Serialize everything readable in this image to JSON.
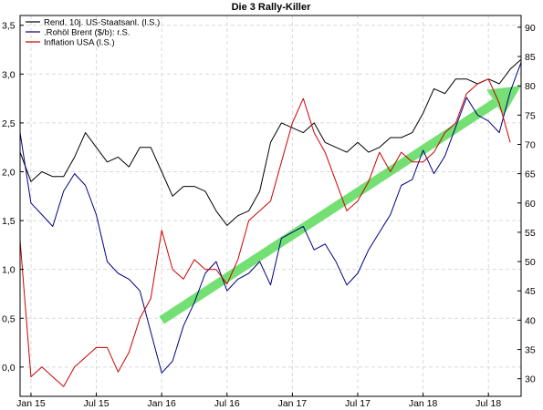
{
  "chart_data": {
    "type": "line",
    "title": "Die 3 Rally-Killer",
    "xlabel": "",
    "ylabel_left": "",
    "ylabel_right": "",
    "x_ticks": [
      "Jan 15",
      "Jul 15",
      "Jan 16",
      "Jul 16",
      "Jan 17",
      "Jul 17",
      "Jan 18",
      "Jul 18"
    ],
    "x_range": [
      "2014-12",
      "2018-10"
    ],
    "y_left_ticks": [
      "3,5",
      "3,0",
      "2,5",
      "2,0",
      "1,5",
      "1,0",
      "0,5",
      "0,0"
    ],
    "y_left_range": [
      -0.3,
      3.6
    ],
    "y_right_ticks": [
      "90",
      "85",
      "80",
      "75",
      "70",
      "65",
      "60",
      "55",
      "50",
      "45",
      "40",
      "35",
      "30"
    ],
    "y_right_range": [
      27,
      92
    ],
    "grid": true,
    "legend_position": "top-left",
    "series": [
      {
        "name": "Rend. 10j. US-Staatsanl. (l.S.)",
        "axis": "left",
        "color": "#000000",
        "points": [
          [
            "2014-12",
            2.2
          ],
          [
            "2015-01",
            1.9
          ],
          [
            "2015-02",
            2.0
          ],
          [
            "2015-03",
            1.95
          ],
          [
            "2015-04",
            1.95
          ],
          [
            "2015-05",
            2.15
          ],
          [
            "2015-06",
            2.4
          ],
          [
            "2015-07",
            2.25
          ],
          [
            "2015-08",
            2.1
          ],
          [
            "2015-09",
            2.15
          ],
          [
            "2015-10",
            2.05
          ],
          [
            "2015-11",
            2.25
          ],
          [
            "2015-12",
            2.25
          ],
          [
            "2016-01",
            2.0
          ],
          [
            "2016-02",
            1.75
          ],
          [
            "2016-03",
            1.85
          ],
          [
            "2016-04",
            1.85
          ],
          [
            "2016-05",
            1.8
          ],
          [
            "2016-06",
            1.6
          ],
          [
            "2016-07",
            1.45
          ],
          [
            "2016-08",
            1.55
          ],
          [
            "2016-09",
            1.6
          ],
          [
            "2016-10",
            1.8
          ],
          [
            "2016-11",
            2.3
          ],
          [
            "2016-12",
            2.5
          ],
          [
            "2017-01",
            2.45
          ],
          [
            "2017-02",
            2.4
          ],
          [
            "2017-03",
            2.5
          ],
          [
            "2017-04",
            2.3
          ],
          [
            "2017-05",
            2.25
          ],
          [
            "2017-06",
            2.2
          ],
          [
            "2017-07",
            2.3
          ],
          [
            "2017-08",
            2.2
          ],
          [
            "2017-09",
            2.25
          ],
          [
            "2017-10",
            2.35
          ],
          [
            "2017-11",
            2.35
          ],
          [
            "2017-12",
            2.4
          ],
          [
            "2018-01",
            2.6
          ],
          [
            "2018-02",
            2.85
          ],
          [
            "2018-03",
            2.8
          ],
          [
            "2018-04",
            2.95
          ],
          [
            "2018-05",
            2.95
          ],
          [
            "2018-06",
            2.9
          ],
          [
            "2018-07",
            2.95
          ],
          [
            "2018-08",
            2.9
          ],
          [
            "2018-09",
            3.05
          ],
          [
            "2018-10",
            3.15
          ]
        ]
      },
      {
        "name": ".Rohöl Brent ($/b): r.S.",
        "axis": "right",
        "color": "#00007f",
        "points": [
          [
            "2014-12",
            72
          ],
          [
            "2015-01",
            60
          ],
          [
            "2015-02",
            58
          ],
          [
            "2015-03",
            56
          ],
          [
            "2015-04",
            62
          ],
          [
            "2015-05",
            65
          ],
          [
            "2015-06",
            63
          ],
          [
            "2015-07",
            58
          ],
          [
            "2015-08",
            50
          ],
          [
            "2015-09",
            48
          ],
          [
            "2015-10",
            47
          ],
          [
            "2015-11",
            45
          ],
          [
            "2015-12",
            38
          ],
          [
            "2016-01",
            31
          ],
          [
            "2016-02",
            33
          ],
          [
            "2016-03",
            39
          ],
          [
            "2016-04",
            43
          ],
          [
            "2016-05",
            48
          ],
          [
            "2016-06",
            50
          ],
          [
            "2016-07",
            45
          ],
          [
            "2016-08",
            47
          ],
          [
            "2016-09",
            48
          ],
          [
            "2016-10",
            50
          ],
          [
            "2016-11",
            46
          ],
          [
            "2016-12",
            54
          ],
          [
            "2017-01",
            55
          ],
          [
            "2017-02",
            56
          ],
          [
            "2017-03",
            52
          ],
          [
            "2017-04",
            53
          ],
          [
            "2017-05",
            50
          ],
          [
            "2017-06",
            46
          ],
          [
            "2017-07",
            48
          ],
          [
            "2017-08",
            52
          ],
          [
            "2017-09",
            55
          ],
          [
            "2017-10",
            58
          ],
          [
            "2017-11",
            63
          ],
          [
            "2017-12",
            64
          ],
          [
            "2018-01",
            69
          ],
          [
            "2018-02",
            65
          ],
          [
            "2018-03",
            68
          ],
          [
            "2018-04",
            73
          ],
          [
            "2018-05",
            78
          ],
          [
            "2018-06",
            75
          ],
          [
            "2018-07",
            74
          ],
          [
            "2018-08",
            72
          ],
          [
            "2018-09",
            79
          ],
          [
            "2018-10",
            84
          ]
        ]
      },
      {
        "name": "Inflation USA (l.S.)",
        "axis": "left",
        "color": "#cc0000",
        "points": [
          [
            "2014-12",
            1.3
          ],
          [
            "2015-01",
            -0.1
          ],
          [
            "2015-02",
            0.0
          ],
          [
            "2015-03",
            -0.1
          ],
          [
            "2015-04",
            -0.2
          ],
          [
            "2015-05",
            0.0
          ],
          [
            "2015-06",
            0.1
          ],
          [
            "2015-07",
            0.2
          ],
          [
            "2015-08",
            0.2
          ],
          [
            "2015-09",
            -0.05
          ],
          [
            "2015-10",
            0.15
          ],
          [
            "2015-11",
            0.5
          ],
          [
            "2015-12",
            0.7
          ],
          [
            "2016-01",
            1.4
          ],
          [
            "2016-02",
            1.0
          ],
          [
            "2016-03",
            0.9
          ],
          [
            "2016-04",
            1.1
          ],
          [
            "2016-05",
            1.0
          ],
          [
            "2016-06",
            1.0
          ],
          [
            "2016-07",
            0.85
          ],
          [
            "2016-08",
            1.1
          ],
          [
            "2016-09",
            1.5
          ],
          [
            "2016-10",
            1.6
          ],
          [
            "2016-11",
            1.7
          ],
          [
            "2016-12",
            2.1
          ],
          [
            "2017-01",
            2.5
          ],
          [
            "2017-02",
            2.75
          ],
          [
            "2017-03",
            2.4
          ],
          [
            "2017-04",
            2.2
          ],
          [
            "2017-05",
            1.9
          ],
          [
            "2017-06",
            1.6
          ],
          [
            "2017-07",
            1.7
          ],
          [
            "2017-08",
            1.9
          ],
          [
            "2017-09",
            2.2
          ],
          [
            "2017-10",
            2.0
          ],
          [
            "2017-11",
            2.2
          ],
          [
            "2017-12",
            2.1
          ],
          [
            "2018-01",
            2.1
          ],
          [
            "2018-02",
            2.2
          ],
          [
            "2018-03",
            2.4
          ],
          [
            "2018-04",
            2.5
          ],
          [
            "2018-05",
            2.8
          ],
          [
            "2018-06",
            2.9
          ],
          [
            "2018-07",
            2.95
          ],
          [
            "2018-08",
            2.7
          ],
          [
            "2018-09",
            2.3
          ]
        ]
      }
    ],
    "annotations": [
      {
        "type": "arrow",
        "color": "#66dd66",
        "from": [
          "2016-01",
          40
        ],
        "to": [
          "2018-10",
          80
        ],
        "axis": "right"
      }
    ]
  }
}
